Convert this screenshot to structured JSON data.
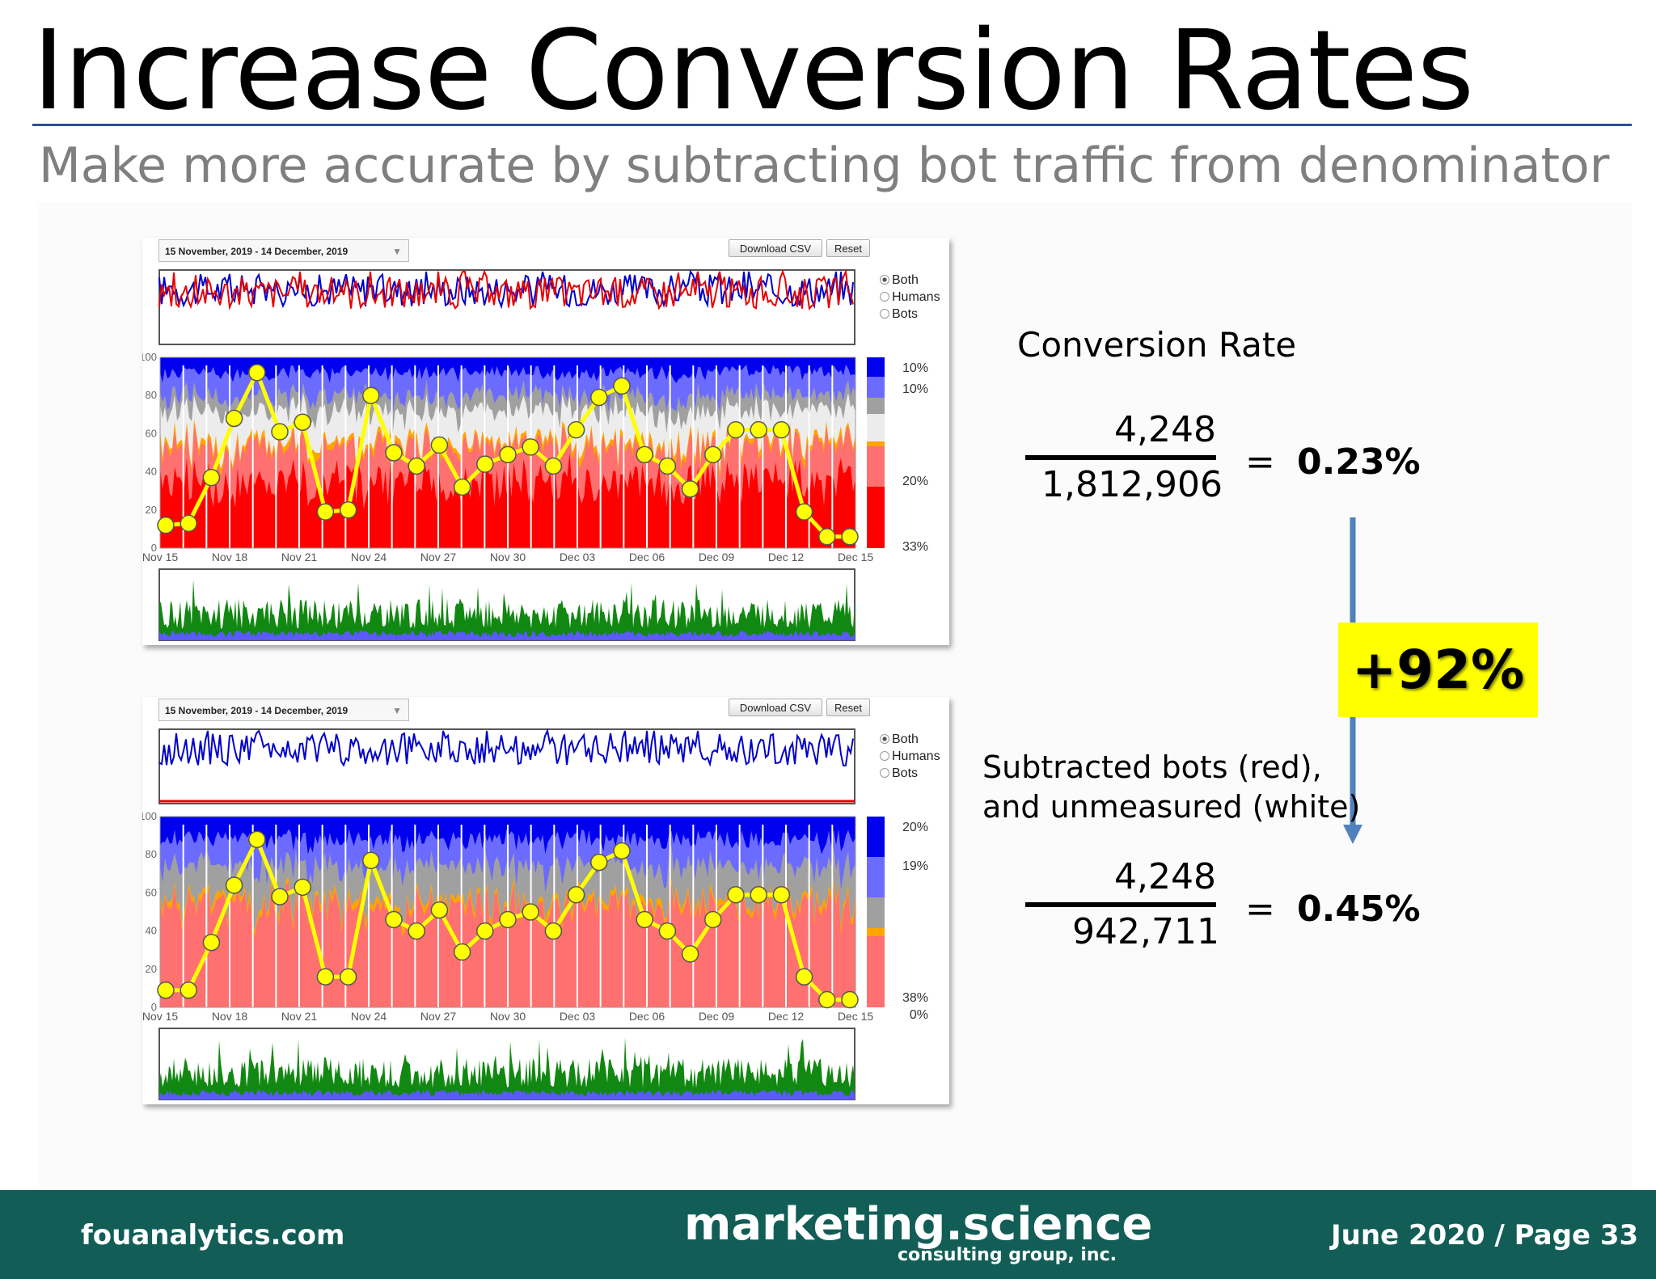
{
  "slide": {
    "title": "Increase Conversion Rates",
    "subtitle": "Make more accurate by subtracting bot traffic from denominator"
  },
  "dashboards": [
    {
      "date_range": "15 November, 2019 - 14 December, 2019",
      "download_label": "Download CSV",
      "reset_label": "Reset",
      "radio_options": [
        "Both",
        "Humans",
        "Bots"
      ],
      "radio_selected": "Both",
      "legend_pcts": [
        "10%",
        "10%",
        "20%",
        "33%"
      ]
    },
    {
      "date_range": "15 November, 2019 - 14 December, 2019",
      "download_label": "Download CSV",
      "reset_label": "Reset",
      "radio_options": [
        "Both",
        "Humans",
        "Bots"
      ],
      "radio_selected": "Both",
      "legend_pcts": [
        "20%",
        "19%",
        "38%",
        "0%"
      ]
    }
  ],
  "axes": {
    "y_ticks": [
      "100",
      "80",
      "60",
      "40",
      "20",
      "0"
    ],
    "x_ticks": [
      "Nov 15",
      "Nov 18",
      "Nov 21",
      "Nov 24",
      "Nov 27",
      "Nov 30",
      "Dec 03",
      "Dec 06",
      "Dec 09",
      "Dec 12",
      "Dec 15"
    ]
  },
  "conversion": {
    "heading": "Conversion Rate",
    "before": {
      "numerator": "4,248",
      "denominator": "1,812,906",
      "equals": "=",
      "result": "0.23%"
    },
    "after": {
      "numerator": "4,248",
      "denominator": "942,711",
      "equals": "=",
      "result": "0.45%"
    },
    "change": "+92%",
    "note_line1": "Subtracted bots (red),",
    "note_line2": "and unmeasured (white)"
  },
  "footer": {
    "left": "fouanalytics.com",
    "center": "marketing.science",
    "center_sub": "consulting group, inc.",
    "right": "June 2020 / Page 33"
  },
  "chart_data": [
    {
      "type": "line",
      "series": [
        {
          "values": [
            12,
            13,
            37,
            68,
            92,
            61,
            66,
            19,
            20,
            80,
            50,
            43,
            54,
            32,
            44,
            49,
            53,
            43,
            62,
            79,
            85,
            49,
            43,
            31,
            49,
            62,
            62,
            62,
            19,
            6,
            6
          ]
        }
      ],
      "ylim": [
        0,
        100
      ]
    },
    {
      "type": "line",
      "series": [
        {
          "values": [
            9,
            9,
            34,
            64,
            88,
            58,
            63,
            16,
            16,
            77,
            46,
            40,
            51,
            29,
            40,
            46,
            50,
            40,
            59,
            76,
            82,
            46,
            40,
            28,
            46,
            59,
            59,
            59,
            16,
            4,
            4
          ]
        }
      ],
      "ylim": [
        0,
        100
      ]
    }
  ],
  "colors": {
    "footer_bg": "#125e57",
    "highlight": "#ffff00",
    "arrow": "#4f81bd",
    "line": "#ffff00",
    "humans": "#0000cc",
    "bots": "#e60000",
    "volume": "#118811"
  }
}
